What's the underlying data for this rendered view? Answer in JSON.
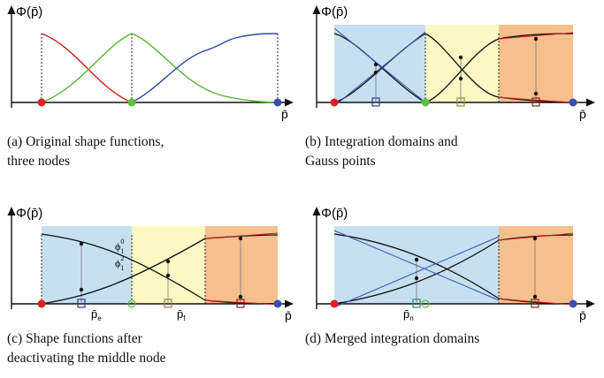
{
  "panels": [
    {
      "id": "a",
      "y_label": "Φ(p̄)",
      "x_label": "p̄",
      "caption_lines": [
        "(a) Original shape functions,",
        "three nodes"
      ]
    },
    {
      "id": "b",
      "y_label": "Φ(p̄)",
      "x_label": "p̄",
      "caption_lines": [
        "(b) Integration domains and",
        "Gauss points"
      ]
    },
    {
      "id": "c",
      "y_label": "Φ(p̄)",
      "x_label": "p̄",
      "annotations": {
        "phi_top": "ϕ",
        "phi_top_sub": "1",
        "phi_top_sup": "0",
        "phi_bottom": "ϕ",
        "phi_bottom_sub": "1",
        "phi_bottom_sup": "2",
        "p_e": "p̄",
        "p_e_sub": "e",
        "p_f": "p̄",
        "p_f_sub": "f"
      },
      "caption_lines": [
        "(c) Shape functions after",
        "deactivating the middle node"
      ]
    },
    {
      "id": "d",
      "y_label": "Φ(p̄)",
      "x_label": "p̄",
      "annotations": {
        "p_n": "p̄",
        "p_n_sub": "n"
      },
      "caption_lines": [
        "(d) Merged integration domains"
      ]
    }
  ],
  "colors": {
    "node_left": "#e02020",
    "node_middle": "#5cc043",
    "node_right": "#3a4fb0",
    "curve_red": "#cc1f1f",
    "curve_green": "#55b52e",
    "curve_blue": "#2f4aa6",
    "domain_blue": "#c6e0f2",
    "domain_yellow": "#fdf8c4",
    "domain_orange": "#f6c08d",
    "gauss_outline_blue": "#2a3f9c",
    "gauss_outline_olive": "#8f8a2b",
    "gauss_outline_brown": "#7a2a1a"
  }
}
